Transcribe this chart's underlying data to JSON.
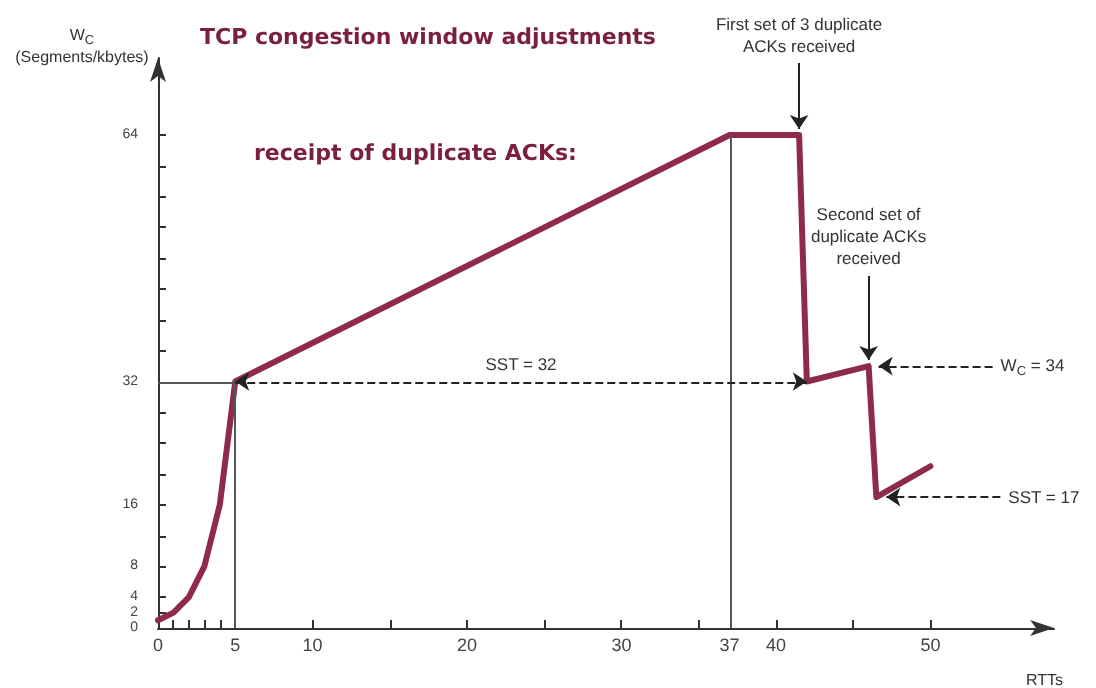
{
  "chart_data": {
    "type": "line",
    "title": "TCP congestion window adjustments",
    "subtitle": "receipt of duplicate ACKs:",
    "xlabel": "RTTs",
    "ylabel": "W$_{C}$ (Segments/kbytes)",
    "x": [
      0,
      1,
      2,
      3,
      4,
      5,
      37,
      41.5,
      42,
      46,
      46.5,
      50
    ],
    "series": [
      {
        "color": "#8e2a4c",
        "values": [
          1,
          2,
          4,
          8,
          16,
          32,
          64,
          64,
          32,
          34,
          17,
          21
        ]
      }
    ],
    "xlim": [
      0,
      58
    ],
    "ylim": [
      0,
      74
    ],
    "xticks": [
      0,
      {
        "value": 1,
        "label": null
      },
      {
        "value": 2,
        "label": null
      },
      {
        "value": 3,
        "label": null
      },
      {
        "value": 4,
        "label": null
      },
      5,
      10,
      {
        "value": 15,
        "label": null
      },
      20,
      {
        "value": 25,
        "label": null
      },
      30,
      {
        "value": 35,
        "label": null
      },
      37,
      40,
      {
        "value": 45,
        "label": null
      },
      50
    ],
    "yticks": [
      0,
      2,
      4,
      8,
      {
        "value": 12,
        "label": null
      },
      16,
      {
        "value": 20,
        "label": null
      },
      {
        "value": 24,
        "label": null
      },
      {
        "value": 28,
        "label": null
      },
      32,
      {
        "value": 36,
        "label": null
      },
      {
        "value": 40,
        "label": null
      },
      {
        "value": 44,
        "label": null
      },
      {
        "value": 48,
        "label": null
      },
      {
        "value": 52,
        "label": null
      },
      {
        "value": 56,
        "label": null
      },
      {
        "value": 60,
        "label": null
      },
      64
    ],
    "ref_lines": [
      {
        "axis": "x",
        "value": 5
      },
      {
        "axis": "x",
        "value": 37
      },
      {
        "axis": "y",
        "value": 32
      }
    ],
    "annotations": [
      "SST = 32",
      {
        "text": "W$_{C}$ = 34",
        "x": 46,
        "y": 34
      },
      {
        "text": "SST = 17",
        "x": 46.5,
        "y": 17
      },
      {
        "text": "First set of 3 duplicate ACKs received",
        "x": 41.5,
        "y": 64
      },
      {
        "text": "Second set of duplicate ACKs received",
        "x": 46,
        "y": 34
      }
    ],
    "grid": false,
    "marker": "none",
    "line_style": "solid"
  }
}
